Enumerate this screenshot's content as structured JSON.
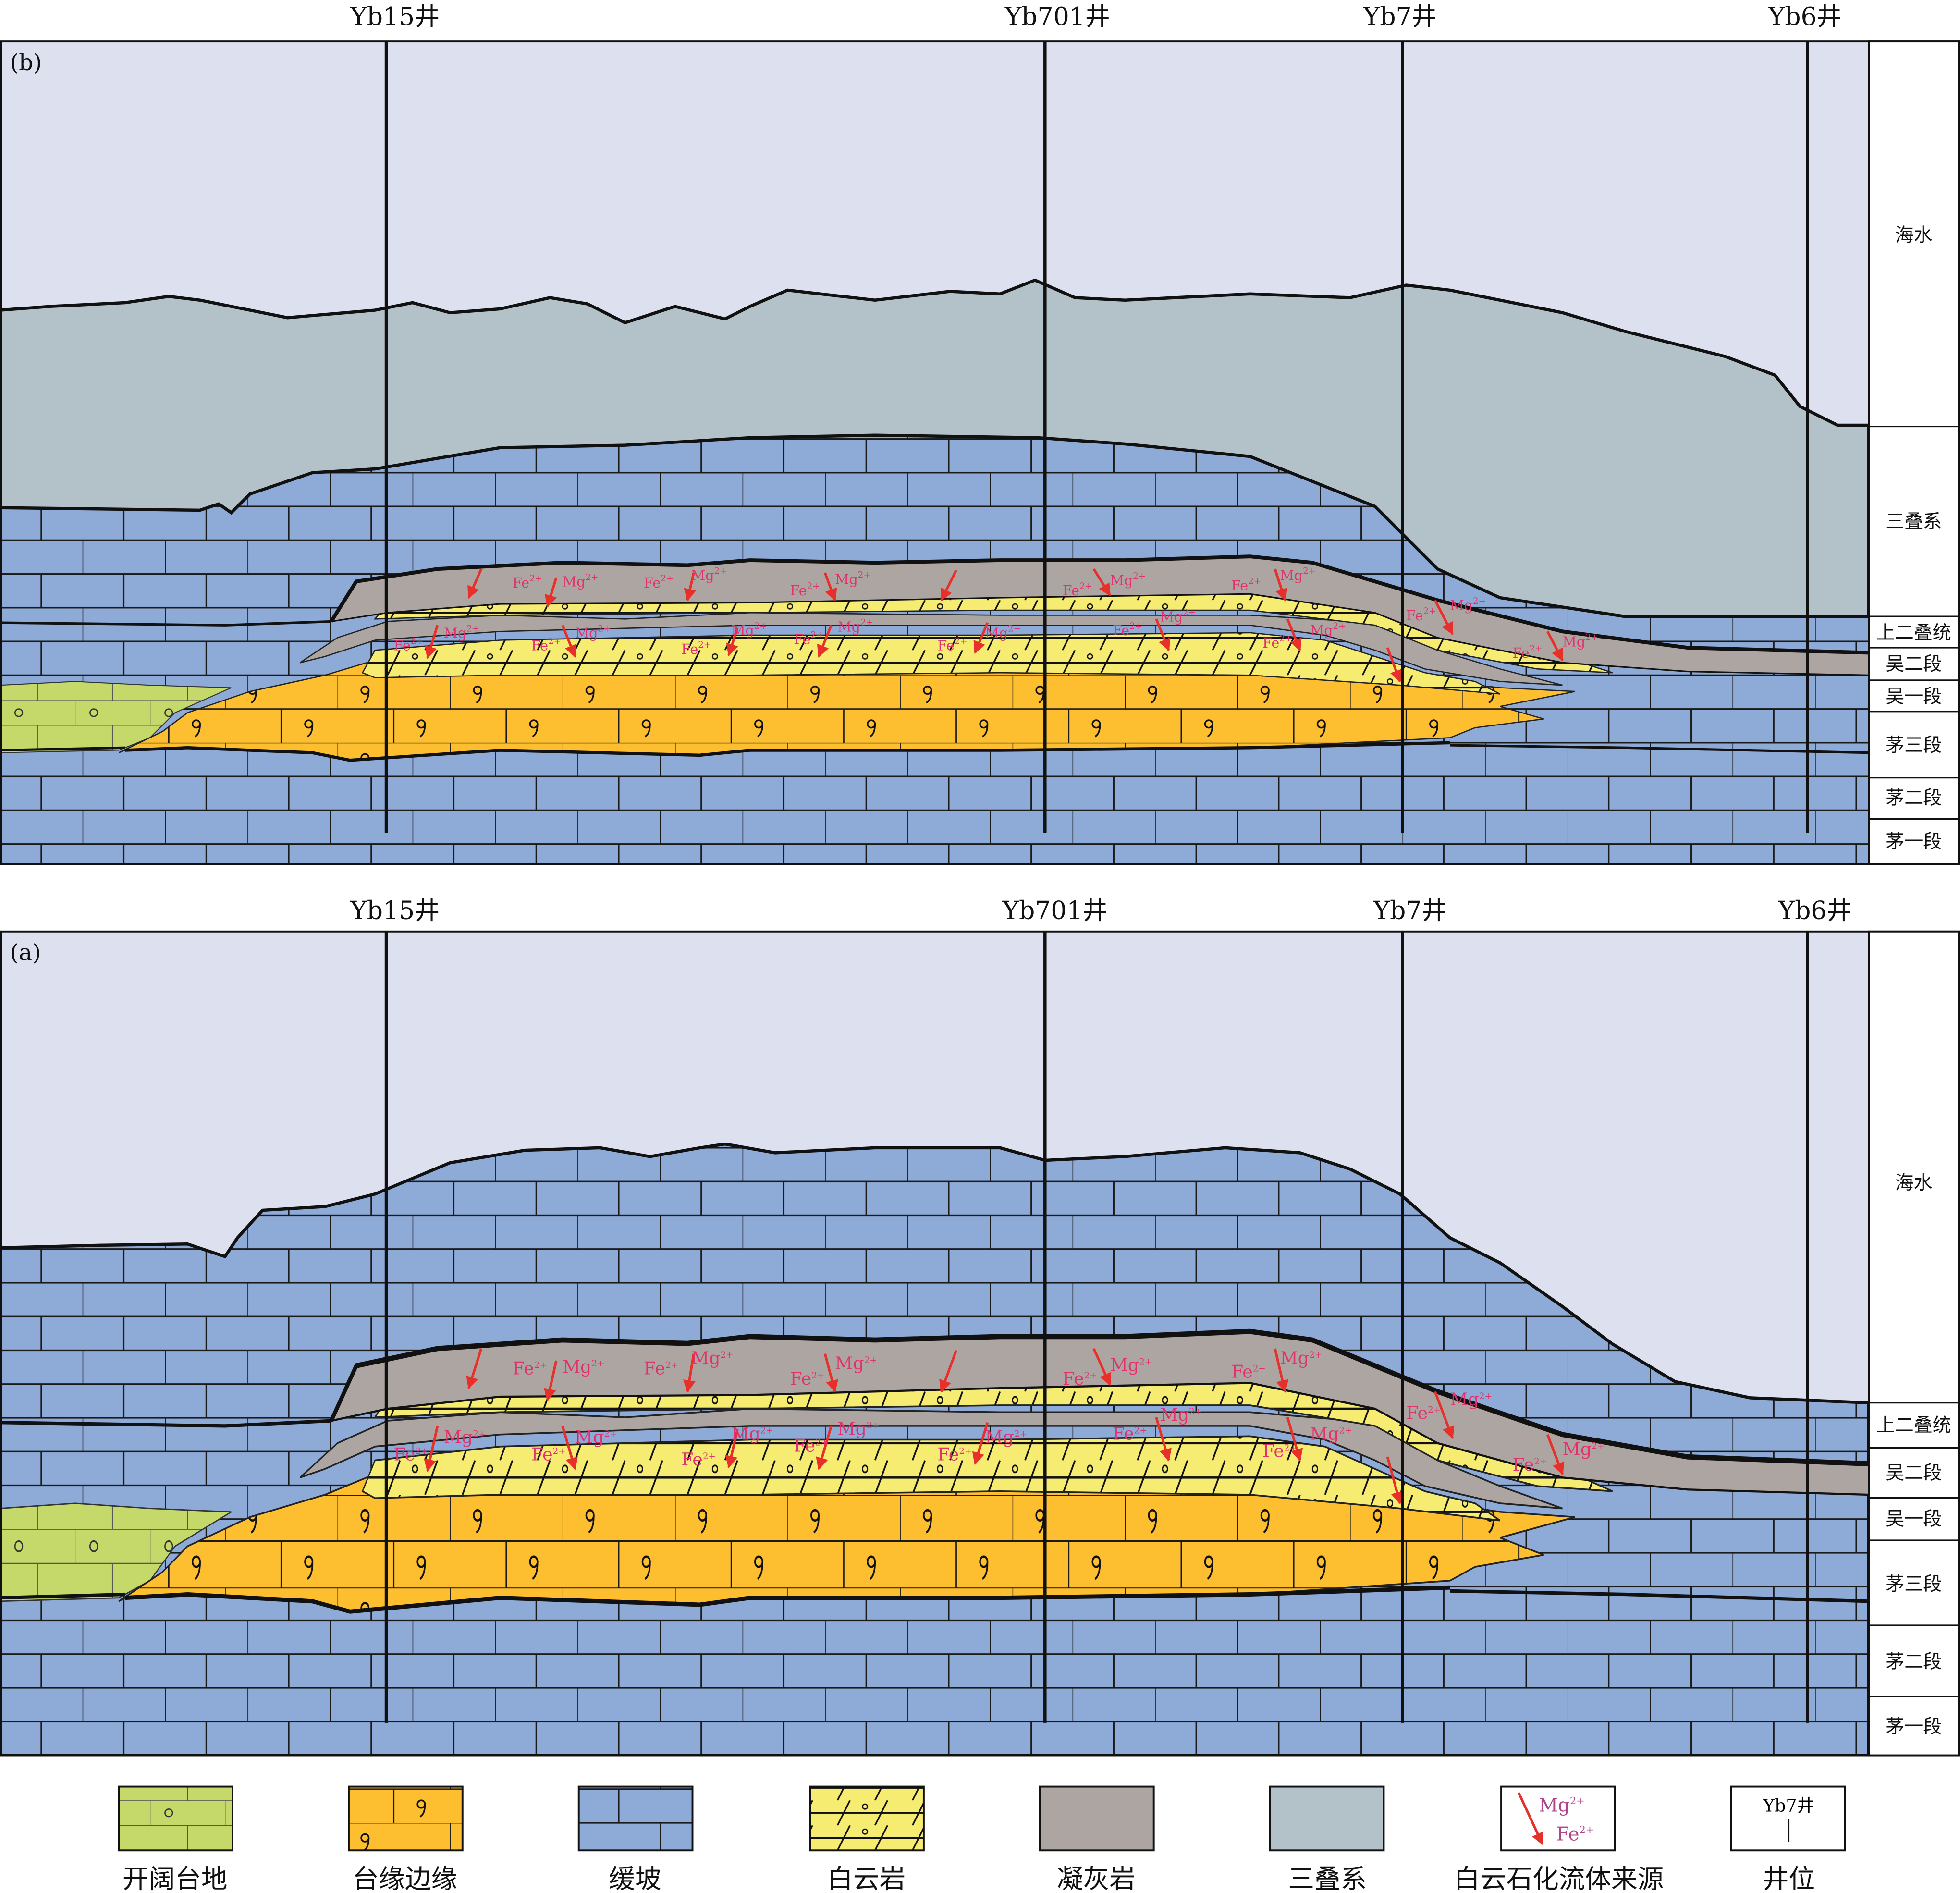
{
  "panels": {
    "b": {
      "label": "(b)",
      "wells": [
        "Yb15井",
        "Yb701井",
        "Yb7井",
        "Yb6井"
      ],
      "strata": [
        "海水",
        "三叠系",
        "上二叠统",
        "吴二段",
        "吴一段",
        "茅三段",
        "茅二段",
        "茅一段"
      ]
    },
    "a": {
      "label": "(a)",
      "wells": [
        "Yb15井",
        "Yb701井",
        "Yb7井",
        "Yb6井"
      ],
      "strata": [
        "海水",
        "上二叠统",
        "吴二段",
        "吴一段",
        "茅三段",
        "茅二段",
        "茅一段"
      ]
    }
  },
  "ion_labels": {
    "mg": "Mg",
    "fe": "Fe",
    "charge": "2+"
  },
  "legend": {
    "items": [
      "开阔台地",
      "台缘边缘",
      "缓坡",
      "白云岩",
      "凝灰岩",
      "三叠系",
      "白云石化流体来源",
      "井位"
    ],
    "well_sample": "Yb7井"
  },
  "colors": {
    "seawater": "#dde1ef",
    "triassic": "#b3c2c8",
    "ramp": "#8eaad6",
    "platform_margin": "#fdbf30",
    "open_platform": "#c5d96a",
    "dolomite": "#f6ec72",
    "tuff": "#ada5a2",
    "fluid_arrow": "#e8302a"
  }
}
